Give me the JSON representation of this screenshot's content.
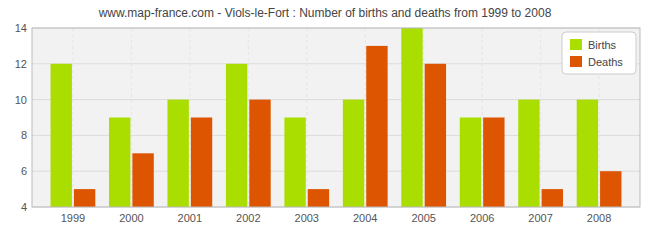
{
  "chart_data": {
    "type": "bar",
    "title": "www.map-france.com - Viols-le-Fort : Number of births and deaths from 1999 to 2008",
    "categories": [
      "1999",
      "2000",
      "2001",
      "2002",
      "2003",
      "2004",
      "2005",
      "2006",
      "2007",
      "2008"
    ],
    "series": [
      {
        "name": "Births",
        "color": "#aadd00",
        "values": [
          12,
          9,
          10,
          12,
          9,
          10,
          14,
          9,
          10,
          10
        ]
      },
      {
        "name": "Deaths",
        "color": "#dd5500",
        "values": [
          5,
          7,
          9,
          10,
          5,
          13,
          12,
          9,
          5,
          6
        ]
      }
    ],
    "ylim": [
      4,
      14
    ],
    "yticks": [
      4,
      6,
      8,
      10,
      12,
      14
    ],
    "grid": true,
    "legend": "upper right"
  }
}
